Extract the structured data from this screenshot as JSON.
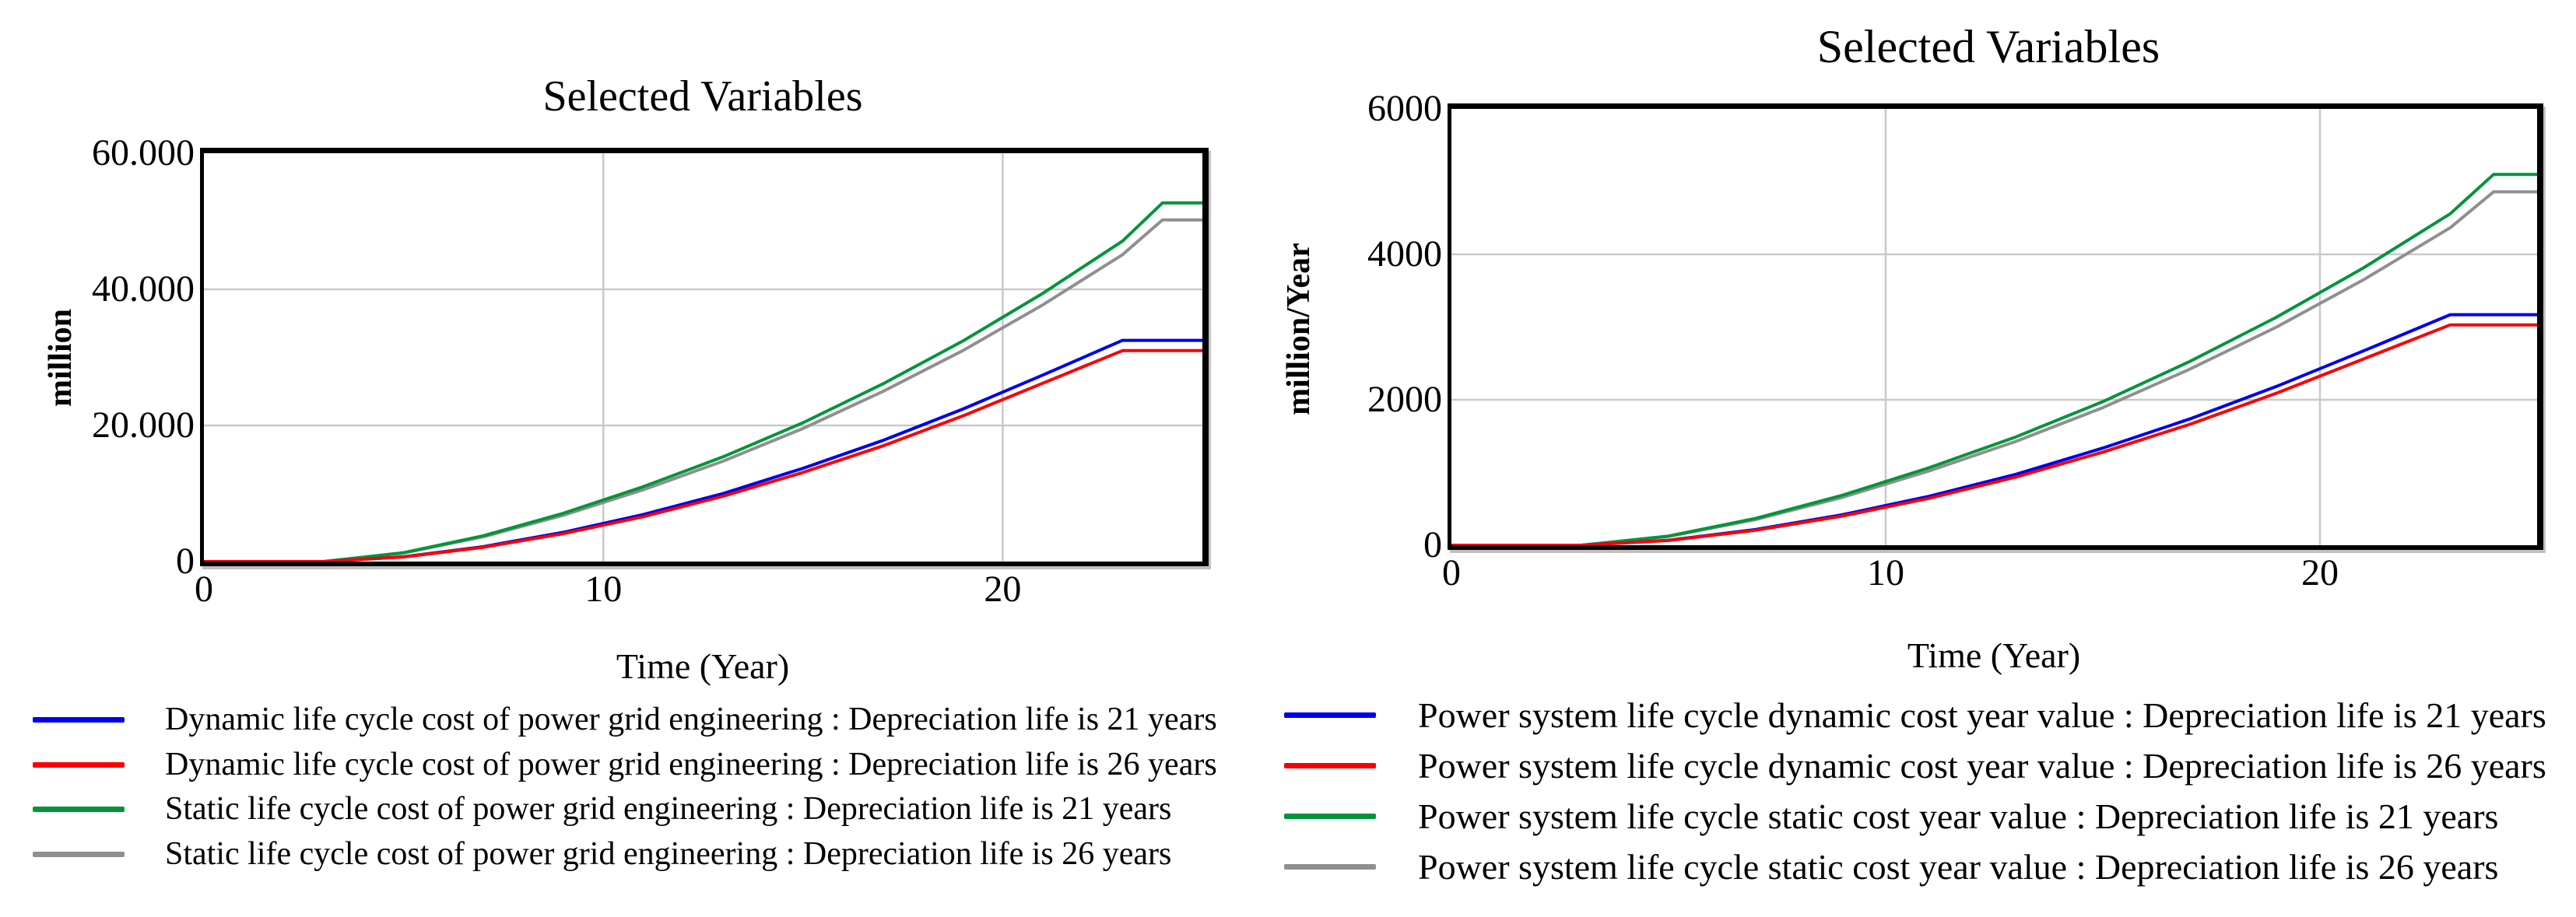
{
  "page": {
    "background": "#ffffff",
    "grid_color": "#c9c9c9",
    "axis_color": "#000000"
  },
  "chart_data": [
    {
      "type": "line",
      "title": "Selected Variables",
      "xlabel": "Time (Year)",
      "ylabel": "million",
      "xlim": [
        0,
        25
      ],
      "ylim": [
        0,
        60000
      ],
      "grid": true,
      "grid_x": [
        10,
        20
      ],
      "grid_y": [
        20000,
        40000
      ],
      "x_ticks": [
        {
          "v": 0,
          "label": "0"
        },
        {
          "v": 10,
          "label": "10"
        },
        {
          "v": 20,
          "label": "20"
        }
      ],
      "y_ticks": [
        {
          "v": 0,
          "label": "0"
        },
        {
          "v": 20000,
          "label": "20.000"
        },
        {
          "v": 40000,
          "label": "40.000"
        },
        {
          "v": 60000,
          "label": "60.000"
        }
      ],
      "legend_position": "below-left",
      "x": [
        0,
        3,
        5,
        7,
        9,
        11,
        13,
        15,
        17,
        19,
        21,
        23,
        24,
        25
      ],
      "series": [
        {
          "name": "Dynamic life cycle cost of power grid engineering : Depreciation life is 21 years",
          "color": "#0000f0",
          "values": [
            0,
            0,
            700,
            2200,
            4300,
            6900,
            10000,
            13700,
            17800,
            22400,
            27400,
            32500,
            32500,
            32500
          ]
        },
        {
          "name": "Dynamic life cycle cost of power grid engineering : Depreciation life is 26 years",
          "color": "#fb0000",
          "values": [
            0,
            0,
            670,
            2100,
            4100,
            6600,
            9600,
            13100,
            17000,
            21400,
            26200,
            31000,
            31000,
            31000
          ]
        },
        {
          "name": "Static life cycle cost of power grid engineering : Depreciation life is 21 years",
          "color": "#00953b",
          "values": [
            0,
            0,
            1300,
            3800,
            7100,
            11000,
            15400,
            20400,
            26100,
            32400,
            39400,
            47100,
            52700,
            52700
          ]
        },
        {
          "name": "Static life cycle cost of power grid engineering : Depreciation life is 26 years",
          "color": "#8f8f8f",
          "values": [
            0,
            0,
            1250,
            3650,
            6800,
            10550,
            14750,
            19550,
            25000,
            31000,
            37700,
            45100,
            50200,
            50200
          ]
        }
      ]
    },
    {
      "type": "line",
      "title": "Selected Variables",
      "xlabel": "Time (Year)",
      "ylabel": "million/Year",
      "xlim": [
        0,
        25
      ],
      "ylim": [
        0,
        6000
      ],
      "grid": true,
      "grid_x": [
        10,
        20
      ],
      "grid_y": [
        2000,
        4000
      ],
      "x_ticks": [
        {
          "v": 0,
          "label": "0"
        },
        {
          "v": 10,
          "label": "10"
        },
        {
          "v": 20,
          "label": "20"
        }
      ],
      "y_ticks": [
        {
          "v": 0,
          "label": "0"
        },
        {
          "v": 2000,
          "label": "2000"
        },
        {
          "v": 4000,
          "label": "4000"
        },
        {
          "v": 6000,
          "label": "6000"
        }
      ],
      "legend_position": "below-left",
      "x": [
        0,
        3,
        5,
        7,
        9,
        11,
        13,
        15,
        17,
        19,
        21,
        23,
        24,
        25
      ],
      "series": [
        {
          "name": "Power system life cycle dynamic cost year value : Depreciation life is 21 years",
          "color": "#0000f0",
          "values": [
            0,
            0,
            68,
            215,
            419,
            673,
            975,
            1336,
            1736,
            2184,
            2672,
            3170,
            3170,
            3170
          ]
        },
        {
          "name": "Power system life cycle dynamic cost year value : Depreciation life is 26 years",
          "color": "#fb0000",
          "values": [
            0,
            0,
            65,
            205,
            401,
            645,
            938,
            1280,
            1662,
            2091,
            2560,
            3030,
            3030,
            3030
          ]
        },
        {
          "name": "Power system life cycle static cost year value : Depreciation life is 21 years",
          "color": "#00953b",
          "values": [
            0,
            0,
            126,
            368,
            687,
            1065,
            1490,
            1974,
            2526,
            3136,
            3813,
            4558,
            5100,
            5100
          ]
        },
        {
          "name": "Power system life cycle static cost year value : Depreciation life is 26 years",
          "color": "#8f8f8f",
          "values": [
            0,
            0,
            121,
            353,
            658,
            1021,
            1428,
            1892,
            2420,
            3000,
            3649,
            4366,
            4860,
            4860
          ]
        }
      ]
    }
  ]
}
